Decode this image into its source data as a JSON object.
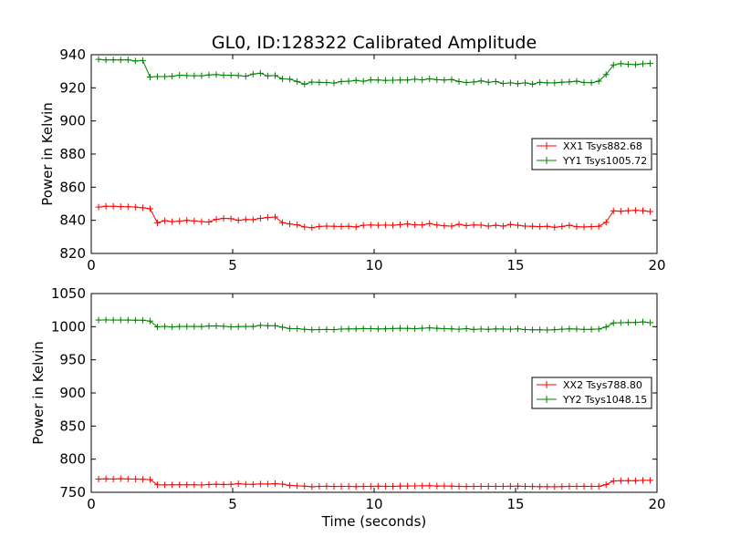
{
  "title": "GL0, ID:128322 Calibrated Amplitude",
  "colors": {
    "XX": "#ff0000",
    "YY": "#008000"
  },
  "chart_data": [
    {
      "type": "line",
      "title": "GL0, ID:128322 Calibrated Amplitude",
      "xlabel": "",
      "ylabel": "Power in Kelvin",
      "xlim": [
        0,
        20
      ],
      "ylim": [
        820,
        940
      ],
      "xticks": [
        0,
        5,
        10,
        15,
        20
      ],
      "yticks": [
        820,
        840,
        860,
        880,
        900,
        920,
        940
      ],
      "grid": false,
      "legend": "center-right",
      "series": [
        {
          "name": "XX1 Tsys882.68",
          "color": "#ff0000",
          "x": [
            0.26,
            0.52,
            0.78,
            1.04,
            1.3,
            1.56,
            1.82,
            2.08,
            2.34,
            2.6,
            2.86,
            3.12,
            3.38,
            3.64,
            3.9,
            4.16,
            4.42,
            4.68,
            4.94,
            5.2,
            5.46,
            5.72,
            5.98,
            6.24,
            6.5,
            6.76,
            7.02,
            7.28,
            7.54,
            7.8,
            8.06,
            8.32,
            8.58,
            8.84,
            9.1,
            9.36,
            9.62,
            9.88,
            10.14,
            10.4,
            10.66,
            10.92,
            11.18,
            11.44,
            11.7,
            11.96,
            12.22,
            12.48,
            12.74,
            13.0,
            13.26,
            13.52,
            13.78,
            14.04,
            14.3,
            14.56,
            14.82,
            15.08,
            15.34,
            15.6,
            15.86,
            16.12,
            16.38,
            16.64,
            16.9,
            17.16,
            17.42,
            17.68,
            17.94,
            18.2,
            18.46,
            18.72,
            18.98,
            19.24,
            19.5,
            19.76
          ],
          "values": [
            848.0,
            848.5,
            848.5,
            848.3,
            848.2,
            848.0,
            847.6,
            847.0,
            838.5,
            839.8,
            839.2,
            839.5,
            840.0,
            839.6,
            839.2,
            839.0,
            840.6,
            841.2,
            841.0,
            840.0,
            840.5,
            840.4,
            841.2,
            841.7,
            842.0,
            838.6,
            837.8,
            837.3,
            836.0,
            835.5,
            836.3,
            836.5,
            836.4,
            836.3,
            836.4,
            836.0,
            837.0,
            837.2,
            837.0,
            837.1,
            837.0,
            837.4,
            837.8,
            837.3,
            837.2,
            838.0,
            837.2,
            836.7,
            836.5,
            837.6,
            836.8,
            837.2,
            837.1,
            836.5,
            837.0,
            836.5,
            837.5,
            837.0,
            836.5,
            836.4,
            836.2,
            836.4,
            835.8,
            836.3,
            837.0,
            836.2,
            836.0,
            836.2,
            836.4,
            838.8,
            845.7,
            845.5,
            845.8,
            846.0,
            845.8,
            845.3
          ]
        },
        {
          "name": "YY1 Tsys1005.72",
          "color": "#008000",
          "x": [
            0.26,
            0.52,
            0.78,
            1.04,
            1.3,
            1.56,
            1.82,
            2.08,
            2.34,
            2.6,
            2.86,
            3.12,
            3.38,
            3.64,
            3.9,
            4.16,
            4.42,
            4.68,
            4.94,
            5.2,
            5.46,
            5.72,
            5.98,
            6.24,
            6.5,
            6.76,
            7.02,
            7.28,
            7.54,
            7.8,
            8.06,
            8.32,
            8.58,
            8.84,
            9.1,
            9.36,
            9.62,
            9.88,
            10.14,
            10.4,
            10.66,
            10.92,
            11.18,
            11.44,
            11.7,
            11.96,
            12.22,
            12.48,
            12.74,
            13.0,
            13.26,
            13.52,
            13.78,
            14.04,
            14.3,
            14.56,
            14.82,
            15.08,
            15.34,
            15.6,
            15.86,
            16.12,
            16.38,
            16.64,
            16.9,
            17.16,
            17.42,
            17.68,
            17.94,
            18.2,
            18.46,
            18.72,
            18.98,
            19.24,
            19.5,
            19.76
          ],
          "values": [
            937.2,
            936.8,
            936.9,
            936.8,
            936.9,
            936.2,
            936.5,
            926.5,
            926.8,
            926.8,
            927.0,
            927.6,
            927.4,
            927.3,
            927.3,
            927.8,
            928.0,
            927.6,
            927.6,
            927.4,
            927.0,
            928.3,
            928.8,
            927.2,
            927.4,
            925.4,
            925.2,
            923.8,
            922.2,
            923.5,
            923.3,
            923.2,
            922.9,
            923.8,
            924.0,
            924.5,
            924.0,
            924.8,
            924.7,
            924.5,
            924.6,
            924.7,
            924.7,
            925.2,
            924.8,
            925.4,
            924.9,
            924.7,
            925.0,
            923.8,
            923.2,
            923.5,
            924.2,
            923.4,
            923.8,
            922.6,
            923.0,
            922.5,
            923.0,
            922.2,
            923.3,
            923.0,
            923.0,
            923.4,
            923.6,
            924.0,
            923.2,
            923.1,
            924.0,
            928.0,
            933.8,
            934.6,
            934.2,
            934.0,
            934.5,
            934.7
          ]
        }
      ]
    },
    {
      "type": "line",
      "title": "",
      "xlabel": "Time (seconds)",
      "ylabel": "Power in Kelvin",
      "xlim": [
        0,
        20
      ],
      "ylim": [
        750,
        1050
      ],
      "xticks": [
        0,
        5,
        10,
        15,
        20
      ],
      "yticks": [
        750,
        800,
        850,
        900,
        950,
        1000,
        1050
      ],
      "grid": false,
      "legend": "center-right",
      "series": [
        {
          "name": "XX2 Tsys788.80",
          "color": "#ff0000",
          "x": [
            0.26,
            0.52,
            0.78,
            1.04,
            1.3,
            1.56,
            1.82,
            2.08,
            2.34,
            2.6,
            2.86,
            3.12,
            3.38,
            3.64,
            3.9,
            4.16,
            4.42,
            4.68,
            4.94,
            5.2,
            5.46,
            5.72,
            5.98,
            6.24,
            6.5,
            6.76,
            7.02,
            7.28,
            7.54,
            7.8,
            8.06,
            8.32,
            8.58,
            8.84,
            9.1,
            9.36,
            9.62,
            9.88,
            10.14,
            10.4,
            10.66,
            10.92,
            11.18,
            11.44,
            11.7,
            11.96,
            12.22,
            12.48,
            12.74,
            13.0,
            13.26,
            13.52,
            13.78,
            14.04,
            14.3,
            14.56,
            14.82,
            15.08,
            15.34,
            15.6,
            15.86,
            16.12,
            16.38,
            16.64,
            16.9,
            17.16,
            17.42,
            17.68,
            17.94,
            18.2,
            18.46,
            18.72,
            18.98,
            19.24,
            19.5,
            19.76
          ],
          "values": [
            770.0,
            770.3,
            770.0,
            770.5,
            770.1,
            770.0,
            769.6,
            769.2,
            761.4,
            761.2,
            761.3,
            761.4,
            761.3,
            761.4,
            761.0,
            761.8,
            762.2,
            761.8,
            762.0,
            763.0,
            762.2,
            762.0,
            762.6,
            762.5,
            763.0,
            762.3,
            760.4,
            759.8,
            759.3,
            758.4,
            759.0,
            759.1,
            758.8,
            758.9,
            759.0,
            758.7,
            759.0,
            759.0,
            759.2,
            759.0,
            759.0,
            759.4,
            759.5,
            759.6,
            759.8,
            759.9,
            759.4,
            759.6,
            759.2,
            759.0,
            758.8,
            758.9,
            759.0,
            759.0,
            759.0,
            759.0,
            759.1,
            759.2,
            759.0,
            758.8,
            758.6,
            758.5,
            758.4,
            758.7,
            759.0,
            759.0,
            759.1,
            759.0,
            759.0,
            761.5,
            767.0,
            767.5,
            767.6,
            767.5,
            768.0,
            768.0
          ]
        },
        {
          "name": "YY2 Tsys1048.15",
          "color": "#008000",
          "x": [
            0.26,
            0.52,
            0.78,
            1.04,
            1.3,
            1.56,
            1.82,
            2.08,
            2.34,
            2.6,
            2.86,
            3.12,
            3.38,
            3.64,
            3.9,
            4.16,
            4.42,
            4.68,
            4.94,
            5.2,
            5.46,
            5.72,
            5.98,
            6.24,
            6.5,
            6.76,
            7.02,
            7.28,
            7.54,
            7.8,
            8.06,
            8.32,
            8.58,
            8.84,
            9.1,
            9.36,
            9.62,
            9.88,
            10.14,
            10.4,
            10.66,
            10.92,
            11.18,
            11.44,
            11.7,
            11.96,
            12.22,
            12.48,
            12.74,
            13.0,
            13.26,
            13.52,
            13.78,
            14.04,
            14.3,
            14.56,
            14.82,
            15.08,
            15.34,
            15.6,
            15.86,
            16.12,
            16.38,
            16.64,
            16.9,
            17.16,
            17.42,
            17.68,
            17.94,
            18.2,
            18.46,
            18.72,
            18.98,
            19.24,
            19.5,
            19.76
          ],
          "values": [
            1010.0,
            1010.2,
            1010.0,
            1010.1,
            1010.0,
            1009.8,
            1009.7,
            1008.5,
            999.8,
            1000.5,
            999.6,
            1000.3,
            1000.4,
            1000.3,
            1000.2,
            1001.0,
            1001.2,
            1000.6,
            999.8,
            1000.1,
            1000.4,
            1000.3,
            1002.0,
            1001.4,
            1001.4,
            999.2,
            997.2,
            997.0,
            996.0,
            995.4,
            995.6,
            995.8,
            995.5,
            996.4,
            996.6,
            996.6,
            997.2,
            997.0,
            996.6,
            996.8,
            997.2,
            997.5,
            997.4,
            997.0,
            997.6,
            998.2,
            997.5,
            997.0,
            996.8,
            996.2,
            997.0,
            995.8,
            996.4,
            996.0,
            996.6,
            996.5,
            996.2,
            996.8,
            995.6,
            995.2,
            995.3,
            995.0,
            995.5,
            996.2,
            996.7,
            996.4,
            995.8,
            996.0,
            996.4,
            999.5,
            1005.6,
            1006.0,
            1006.3,
            1006.4,
            1007.2,
            1006.0
          ]
        }
      ]
    }
  ]
}
